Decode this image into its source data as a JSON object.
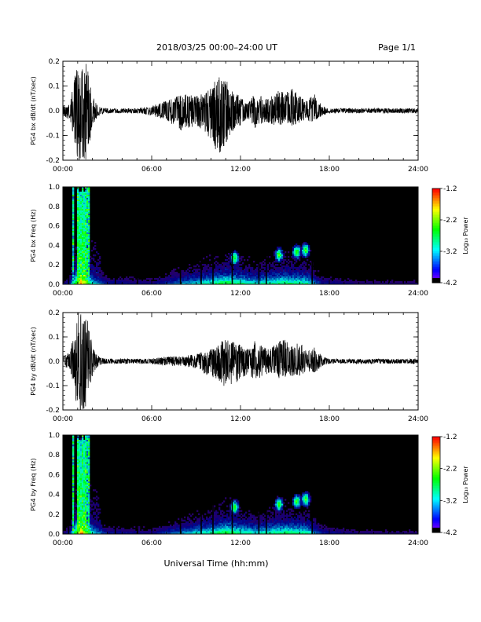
{
  "header": {
    "title": "2018/03/25  00:00–24:00 UT",
    "page": "Page 1/1"
  },
  "footer": {
    "xlabel": "Universal Time (hh:mm)"
  },
  "colorbar": {
    "label": "Log₁₀ Power",
    "ticks": [
      "-1.2",
      "-2.2",
      "-3.2",
      "-4.2"
    ],
    "range": [
      -4.2,
      -1.2
    ]
  },
  "chart_data": [
    {
      "type": "line",
      "ylabel": "PG4 bx dB/dt (nT/sec)",
      "xlabel": "",
      "xlim": [
        0,
        24
      ],
      "ylim": [
        -0.2,
        0.2
      ],
      "xticks": [
        "00:00",
        "06:00",
        "12:00",
        "18:00",
        "24:00"
      ],
      "yticks": [
        "0.2",
        "0.1",
        "0.0",
        "-0.1",
        "-0.2"
      ],
      "envelope": {
        "x": [
          0,
          0.5,
          1.0,
          1.3,
          1.6,
          2.0,
          2.5,
          3,
          4,
          5,
          6,
          7,
          8,
          9,
          9.5,
          10,
          10.5,
          11,
          11.5,
          12,
          12.5,
          13,
          13.5,
          14,
          14.5,
          15,
          15.5,
          16,
          16.5,
          17,
          17.5,
          18,
          19,
          20,
          21,
          22,
          23,
          24
        ],
        "upper": [
          0.02,
          0.04,
          0.2,
          0.2,
          0.2,
          0.06,
          0.015,
          0.01,
          0.01,
          0.01,
          0.02,
          0.04,
          0.07,
          0.06,
          0.07,
          0.1,
          0.14,
          0.13,
          0.08,
          0.06,
          0.03,
          0.08,
          0.06,
          0.05,
          0.09,
          0.07,
          0.09,
          0.06,
          0.04,
          0.07,
          0.02,
          0.01,
          0.01,
          0.01,
          0.01,
          0.01,
          0.01,
          0.01
        ],
        "lower": [
          -0.02,
          -0.04,
          -0.2,
          -0.2,
          -0.2,
          -0.06,
          -0.015,
          -0.01,
          -0.01,
          -0.01,
          -0.02,
          -0.04,
          -0.08,
          -0.06,
          -0.08,
          -0.12,
          -0.18,
          -0.14,
          -0.08,
          -0.06,
          -0.03,
          -0.07,
          -0.05,
          -0.05,
          -0.07,
          -0.06,
          -0.06,
          -0.05,
          -0.04,
          -0.05,
          -0.02,
          -0.01,
          -0.01,
          -0.01,
          -0.01,
          -0.01,
          -0.01,
          -0.01
        ]
      }
    },
    {
      "type": "heatmap",
      "ylabel": "PG4 bx Freq (Hz)",
      "xlabel": "",
      "xlim": [
        0,
        24
      ],
      "ylim": [
        0,
        1.0
      ],
      "xticks": [
        "00:00",
        "06:00",
        "12:00",
        "18:00",
        "24:00"
      ],
      "yticks": [
        "1.0",
        "0.8",
        "0.6",
        "0.4",
        "0.2",
        "0.0"
      ],
      "zlabel": "Log₁₀ Power",
      "zlim": [
        -4.2,
        -1.2
      ],
      "broadband_bursts_hours": [
        0.7,
        1.0,
        1.3,
        1.5,
        1.7
      ],
      "spots": [
        {
          "t": 11.6,
          "f": 0.27
        },
        {
          "t": 14.6,
          "f": 0.3
        },
        {
          "t": 15.8,
          "f": 0.33
        },
        {
          "t": 16.4,
          "f": 0.35
        }
      ]
    },
    {
      "type": "line",
      "ylabel": "PG4 by dB/dt (nT/sec)",
      "xlabel": "",
      "xlim": [
        0,
        24
      ],
      "ylim": [
        -0.2,
        0.2
      ],
      "xticks": [
        "00:00",
        "06:00",
        "12:00",
        "18:00",
        "24:00"
      ],
      "yticks": [
        "0.2",
        "0.1",
        "0.0",
        "-0.1",
        "-0.2"
      ],
      "envelope": {
        "x": [
          0,
          0.5,
          1.0,
          1.3,
          1.6,
          2.0,
          2.5,
          3,
          4,
          5,
          6,
          7,
          8,
          9,
          9.5,
          10,
          10.5,
          11,
          11.5,
          12,
          12.5,
          13,
          13.5,
          14,
          14.5,
          15,
          15.5,
          16,
          16.5,
          17,
          17.5,
          18,
          19,
          20,
          21,
          22,
          23,
          24
        ],
        "upper": [
          0.02,
          0.04,
          0.2,
          0.2,
          0.2,
          0.06,
          0.015,
          0.01,
          0.01,
          0.01,
          0.01,
          0.02,
          0.02,
          0.03,
          0.04,
          0.05,
          0.07,
          0.1,
          0.08,
          0.07,
          0.05,
          0.09,
          0.06,
          0.05,
          0.08,
          0.09,
          0.06,
          0.08,
          0.04,
          0.06,
          0.02,
          0.01,
          0.01,
          0.01,
          0.01,
          0.01,
          0.01,
          0.01
        ],
        "lower": [
          -0.02,
          -0.04,
          -0.2,
          -0.2,
          -0.2,
          -0.06,
          -0.015,
          -0.01,
          -0.01,
          -0.01,
          -0.01,
          -0.02,
          -0.02,
          -0.03,
          -0.05,
          -0.06,
          -0.08,
          -0.11,
          -0.09,
          -0.08,
          -0.05,
          -0.08,
          -0.06,
          -0.05,
          -0.07,
          -0.07,
          -0.06,
          -0.06,
          -0.04,
          -0.05,
          -0.02,
          -0.01,
          -0.01,
          -0.01,
          -0.01,
          -0.01,
          -0.01,
          -0.01
        ]
      }
    },
    {
      "type": "heatmap",
      "ylabel": "PG4 by Freq (Hz)",
      "xlabel": "Universal Time (hh:mm)",
      "xlim": [
        0,
        24
      ],
      "ylim": [
        0,
        1.0
      ],
      "xticks": [
        "00:00",
        "06:00",
        "12:00",
        "18:00",
        "24:00"
      ],
      "yticks": [
        "1.0",
        "0.8",
        "0.6",
        "0.4",
        "0.2",
        "0.0"
      ],
      "zlabel": "Log₁₀ Power",
      "zlim": [
        -4.2,
        -1.2
      ],
      "broadband_bursts_hours": [
        0.7,
        1.0,
        1.3,
        1.5,
        1.7
      ],
      "spots": [
        {
          "t": 11.6,
          "f": 0.27
        },
        {
          "t": 14.6,
          "f": 0.3
        },
        {
          "t": 15.8,
          "f": 0.33
        },
        {
          "t": 16.4,
          "f": 0.35
        }
      ]
    }
  ]
}
